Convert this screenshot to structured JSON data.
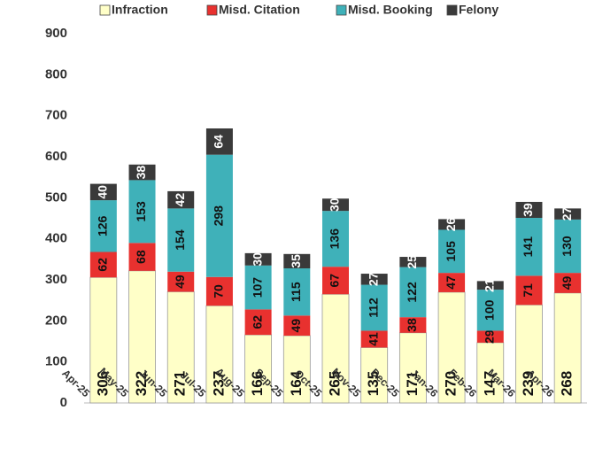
{
  "chart_data": {
    "type": "stacked_bar",
    "categories": [
      "Apr-25",
      "May-25",
      "Jun-25",
      "Jul-25",
      "Aug-25",
      "Sep-25",
      "Oct-25",
      "Nov-25",
      "Dec-25",
      "Jan-26",
      "Feb-26",
      "Mar-26",
      "Apr-26"
    ],
    "series": [
      {
        "name": "Infraction",
        "color": "#ffffc8",
        "values": [
          306,
          322,
          271,
          237,
          166,
          164,
          265,
          135,
          171,
          270,
          147,
          239,
          268
        ]
      },
      {
        "name": "Misd. Citation",
        "color": "#e8312f",
        "values": [
          62,
          68,
          49,
          70,
          62,
          49,
          67,
          41,
          38,
          47,
          29,
          71,
          49
        ]
      },
      {
        "name": "Misd. Booking",
        "color": "#3fb1b9",
        "values": [
          126,
          153,
          154,
          298,
          107,
          115,
          136,
          112,
          122,
          105,
          100,
          141,
          130
        ]
      },
      {
        "name": "Felony",
        "color": "#3a3a3a",
        "values": [
          40,
          38,
          42,
          64,
          30,
          35,
          30,
          27,
          25,
          26,
          21,
          39,
          27
        ]
      }
    ],
    "ylim": [
      0,
      900
    ],
    "yticks": [
      0,
      100,
      200,
      300,
      400,
      500,
      600,
      700,
      800,
      900
    ],
    "legend": "top"
  }
}
